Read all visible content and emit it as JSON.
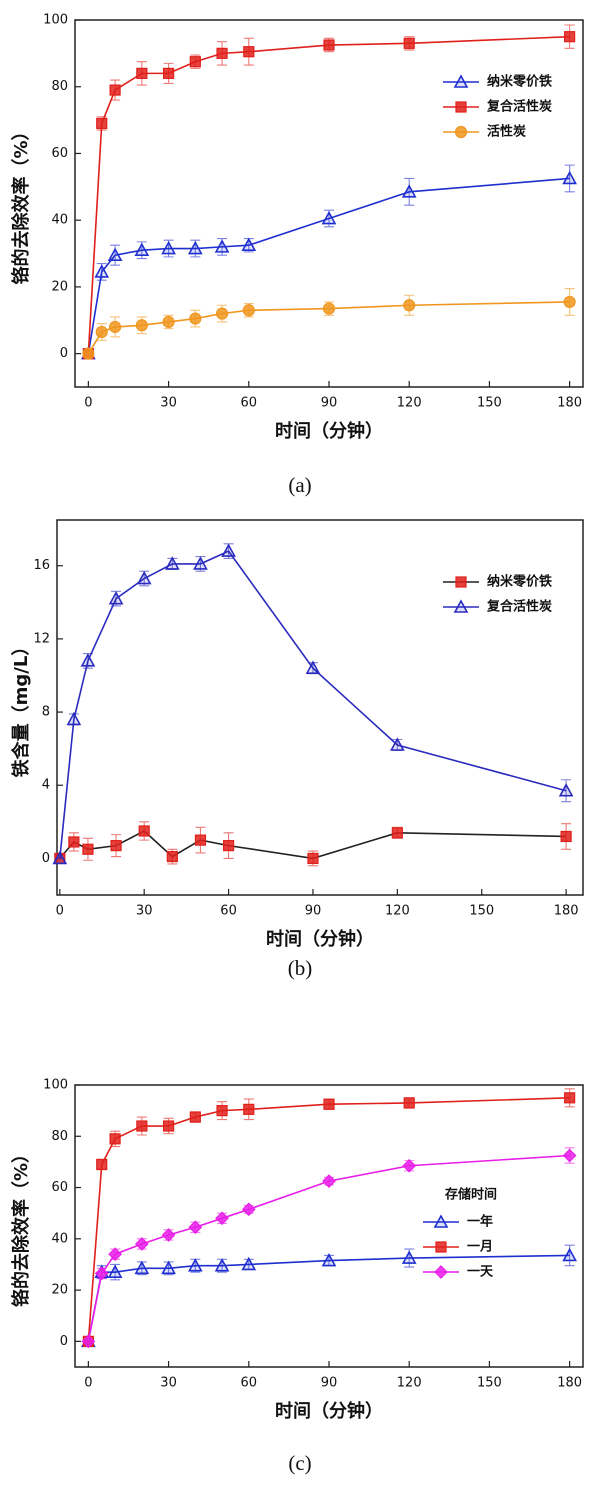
{
  "chart_data": [
    {
      "type": "line",
      "xlabel": "时间（分钟）",
      "ylabel": "铬的去除效率（%）",
      "caption": "(a)",
      "x": [
        0,
        5,
        10,
        20,
        30,
        40,
        50,
        60,
        90,
        120,
        180
      ],
      "xlim": [
        -5,
        185
      ],
      "ylim": [
        -10,
        100
      ],
      "xticks": [
        0,
        30,
        60,
        90,
        120,
        150,
        180
      ],
      "yticks": [
        0,
        20,
        40,
        60,
        80,
        100
      ],
      "legend": "upper right",
      "series": [
        {
          "name": "纳米零价铁",
          "color": "#1f2fd0",
          "marker": "triangle",
          "values": [
            0,
            24.5,
            29.5,
            31,
            31.5,
            31.5,
            32,
            32.5,
            40.5,
            48.5,
            52.5
          ],
          "errors": [
            0,
            2.5,
            3,
            2.5,
            2.5,
            2.5,
            2.5,
            2,
            2.5,
            4,
            4
          ]
        },
        {
          "name": "复合活性炭",
          "color": "#e0201b",
          "marker": "square",
          "values": [
            0,
            69,
            79,
            84,
            84,
            87.5,
            90,
            90.5,
            92.5,
            93,
            95
          ],
          "errors": [
            0,
            2,
            3,
            3.5,
            3,
            2,
            3.5,
            4,
            2,
            2,
            3.5
          ]
        },
        {
          "name": "活性炭",
          "color": "#f0961e",
          "marker": "circle",
          "values": [
            0,
            6.5,
            8,
            8.5,
            9.5,
            10.5,
            12,
            13,
            13.5,
            14.5,
            15.5
          ],
          "errors": [
            0,
            2.5,
            3,
            2.5,
            2,
            2.5,
            2.5,
            2,
            2,
            3,
            4
          ]
        }
      ]
    },
    {
      "type": "line",
      "xlabel": "时间（分钟）",
      "ylabel": "铁含量（mg/L）",
      "caption": "(b)",
      "x": [
        0,
        5,
        10,
        20,
        30,
        40,
        50,
        60,
        90,
        120,
        180
      ],
      "xlim": [
        -1,
        186
      ],
      "ylim": [
        -2,
        18.5
      ],
      "xticks": [
        0,
        30,
        60,
        90,
        120,
        150,
        180
      ],
      "yticks": [
        0,
        4,
        8,
        12,
        16
      ],
      "legend": "upper right",
      "series": [
        {
          "name": "纳米零价铁",
          "color": "#222222",
          "marker_color": "#e0201b",
          "marker": "square",
          "values": [
            0,
            0.9,
            0.5,
            0.7,
            1.5,
            0.1,
            1.0,
            0.7,
            0,
            1.4,
            1.2
          ],
          "errors": [
            0,
            0.5,
            0.6,
            0.6,
            0.5,
            0.4,
            0.7,
            0.7,
            0.4,
            0.3,
            0.7
          ]
        },
        {
          "name": "复合活性炭",
          "color": "#2b2bbf",
          "marker": "triangle",
          "values": [
            0,
            7.6,
            10.8,
            14.2,
            15.3,
            16.1,
            16.1,
            16.8,
            10.4,
            6.2,
            3.7
          ],
          "errors": [
            0,
            0.3,
            0.4,
            0.4,
            0.4,
            0.3,
            0.4,
            0.4,
            0.3,
            0.3,
            0.6
          ]
        }
      ]
    },
    {
      "type": "line",
      "xlabel": "时间（分钟）",
      "ylabel": "铬的去除效率（%）",
      "caption": "(c)",
      "x": [
        0,
        5,
        10,
        20,
        30,
        40,
        50,
        60,
        90,
        120,
        180
      ],
      "xlim": [
        -5,
        185
      ],
      "ylim": [
        -10,
        100
      ],
      "xticks": [
        0,
        30,
        60,
        90,
        120,
        150,
        180
      ],
      "yticks": [
        0,
        20,
        40,
        60,
        80,
        100
      ],
      "legend": "lower right",
      "legend_title": "存储时间",
      "series": [
        {
          "name": "一年",
          "color": "#1f2fd0",
          "marker": "triangle",
          "values": [
            0,
            27,
            27,
            28.5,
            28.5,
            29.5,
            29.5,
            30,
            31.5,
            32.5,
            33.5
          ],
          "errors": [
            0,
            2.5,
            3,
            2.5,
            2.5,
            2.5,
            2.5,
            2,
            2,
            3.5,
            4
          ]
        },
        {
          "name": "一月",
          "color": "#e0201b",
          "marker": "square",
          "values": [
            0,
            69,
            79,
            84,
            84,
            87.5,
            90,
            90.5,
            92.5,
            93,
            95
          ],
          "errors": [
            0,
            2,
            3,
            3.5,
            3,
            2,
            3.5,
            4,
            2,
            2,
            3.5
          ]
        },
        {
          "name": "一天",
          "color": "#e81ee8",
          "marker": "diamond",
          "values": [
            0,
            26.5,
            34,
            38,
            41.5,
            44.5,
            48,
            51.5,
            62.5,
            68.5,
            72.5
          ],
          "errors": [
            0,
            2,
            2,
            2,
            2,
            2,
            2,
            1.5,
            1.5,
            2,
            3
          ]
        }
      ]
    }
  ]
}
